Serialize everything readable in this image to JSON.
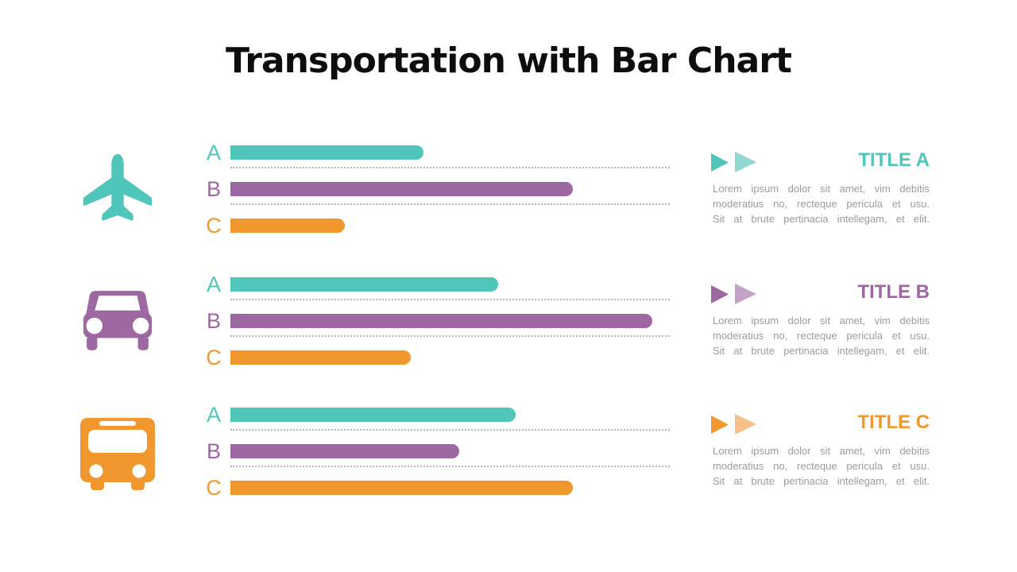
{
  "title": "Transportation with Bar Chart",
  "palette": {
    "teal": "#50C6BA",
    "teal_light": "#8FD9D1",
    "purple": "#9D68A1",
    "purple_light": "#C5A3C7",
    "orange": "#F0982E",
    "orange_light": "#F6C088",
    "body_text": "#9C9C9C",
    "title_text": "#0D0D0D",
    "dotted_line": "#B3B3B3"
  },
  "sections": [
    {
      "icon": "airplane",
      "title": "TITLE A",
      "body": "Lorem ipsum dolor sit amet, vim debitis\nmoderatius no, recteque pericula et usu.\nSit at brute pertinacia intellegam, et elit.",
      "bars": [
        {
          "label": "A",
          "percent": 44
        },
        {
          "label": "B",
          "percent": 78
        },
        {
          "label": "C",
          "percent": 26
        }
      ]
    },
    {
      "icon": "car",
      "title": "TITLE B",
      "body": "Lorem ipsum dolor sit amet, vim debitis\nmoderatius no, recteque pericula et usu.\nSit at brute pertinacia intellegam, et elit.",
      "bars": [
        {
          "label": "A",
          "percent": 61
        },
        {
          "label": "B",
          "percent": 96
        },
        {
          "label": "C",
          "percent": 41
        }
      ]
    },
    {
      "icon": "bus",
      "title": "TITLE C",
      "body": "Lorem ipsum dolor sit amet, vim debitis\nmoderatius no, recteque pericula et usu.\nSit at brute pertinacia intellegam, et elit.",
      "bars": [
        {
          "label": "A",
          "percent": 65
        },
        {
          "label": "B",
          "percent": 52
        },
        {
          "label": "C",
          "percent": 78
        }
      ]
    }
  ],
  "chart_data": [
    {
      "type": "bar",
      "orientation": "horizontal",
      "title": "TITLE A",
      "group": "airplane",
      "categories": [
        "A",
        "B",
        "C"
      ],
      "values": [
        44,
        78,
        26
      ],
      "unit": "percent-of-track",
      "xlim": [
        0,
        100
      ],
      "bar_colors": [
        "#50C6BA",
        "#9D68A1",
        "#F0982E"
      ],
      "grid": "dotted-separators"
    },
    {
      "type": "bar",
      "orientation": "horizontal",
      "title": "TITLE B",
      "group": "car",
      "categories": [
        "A",
        "B",
        "C"
      ],
      "values": [
        61,
        96,
        41
      ],
      "unit": "percent-of-track",
      "xlim": [
        0,
        100
      ],
      "bar_colors": [
        "#50C6BA",
        "#9D68A1",
        "#F0982E"
      ],
      "grid": "dotted-separators"
    },
    {
      "type": "bar",
      "orientation": "horizontal",
      "title": "TITLE C",
      "group": "bus",
      "categories": [
        "A",
        "B",
        "C"
      ],
      "values": [
        65,
        52,
        78
      ],
      "unit": "percent-of-track",
      "xlim": [
        0,
        100
      ],
      "bar_colors": [
        "#50C6BA",
        "#9D68A1",
        "#F0982E"
      ],
      "grid": "dotted-separators"
    }
  ]
}
